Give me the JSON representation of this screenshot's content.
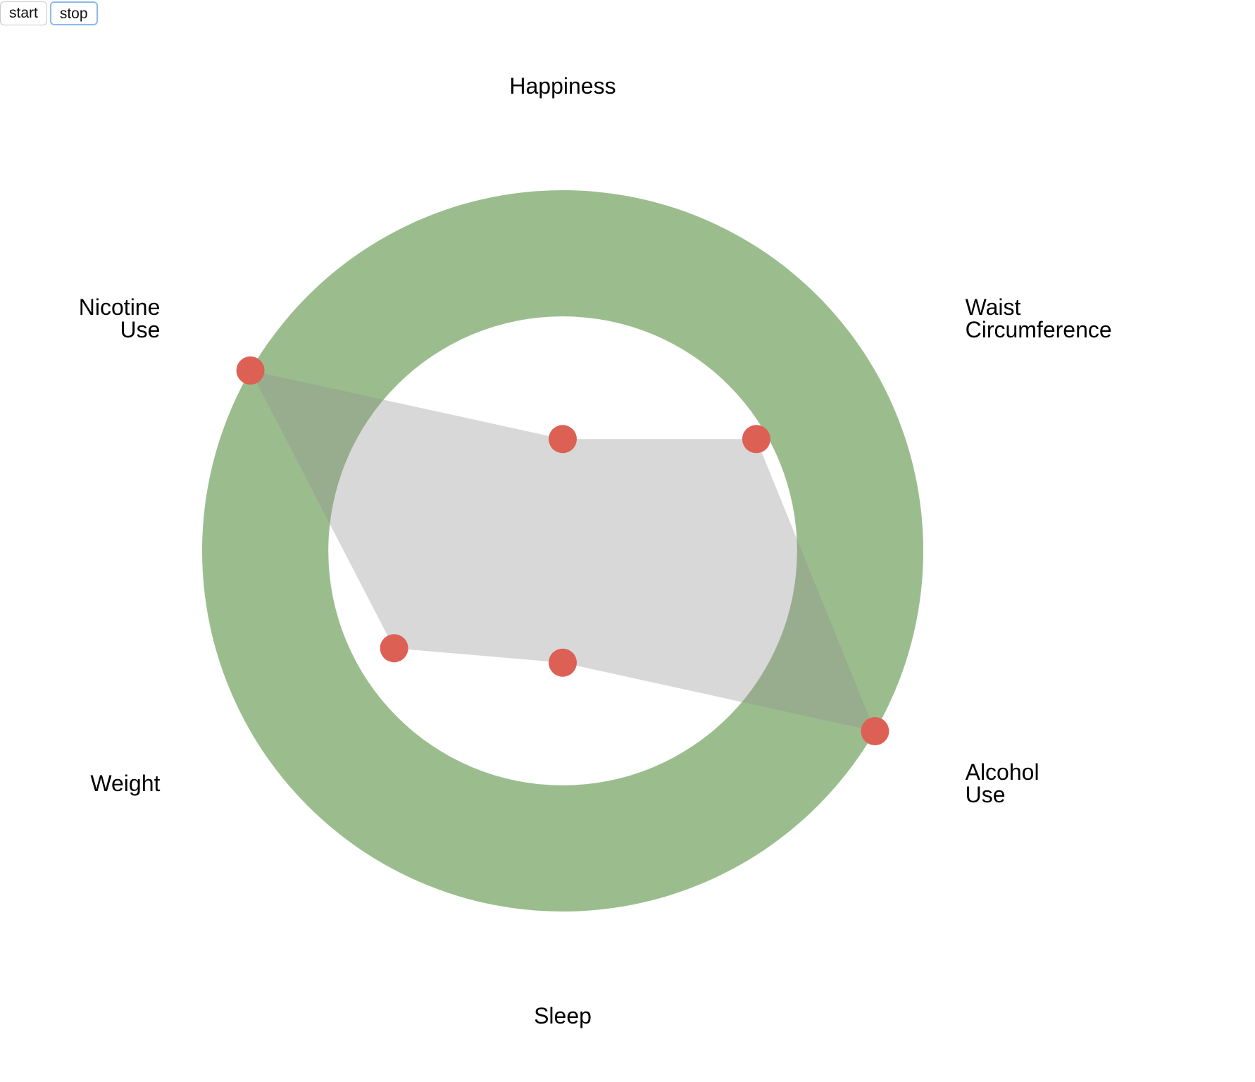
{
  "controls": {
    "start_label": "start",
    "stop_label": "stop"
  },
  "chart_data": {
    "type": "radar",
    "axes": [
      {
        "name": "happiness",
        "lines": [
          "Happiness"
        ],
        "value": 0.31
      },
      {
        "name": "waist-circumference",
        "lines": [
          "Waist",
          "Circumference"
        ],
        "value": 0.62
      },
      {
        "name": "alcohol-use",
        "lines": [
          "Alcohol",
          "Use"
        ],
        "value": 1.0
      },
      {
        "name": "sleep",
        "lines": [
          "Sleep"
        ],
        "value": 0.31
      },
      {
        "name": "weight",
        "lines": [
          "Weight"
        ],
        "value": 0.54
      },
      {
        "name": "nicotine-use",
        "lines": [
          "Nicotine",
          "Use"
        ],
        "value": 1.0
      }
    ],
    "scale": [
      0,
      1
    ],
    "target_band": [
      0.65,
      1.0
    ],
    "colors": {
      "band": "#9bbd8e",
      "polygon": "#8e8e8e",
      "point": "#dd6055",
      "label": "#000000"
    }
  }
}
